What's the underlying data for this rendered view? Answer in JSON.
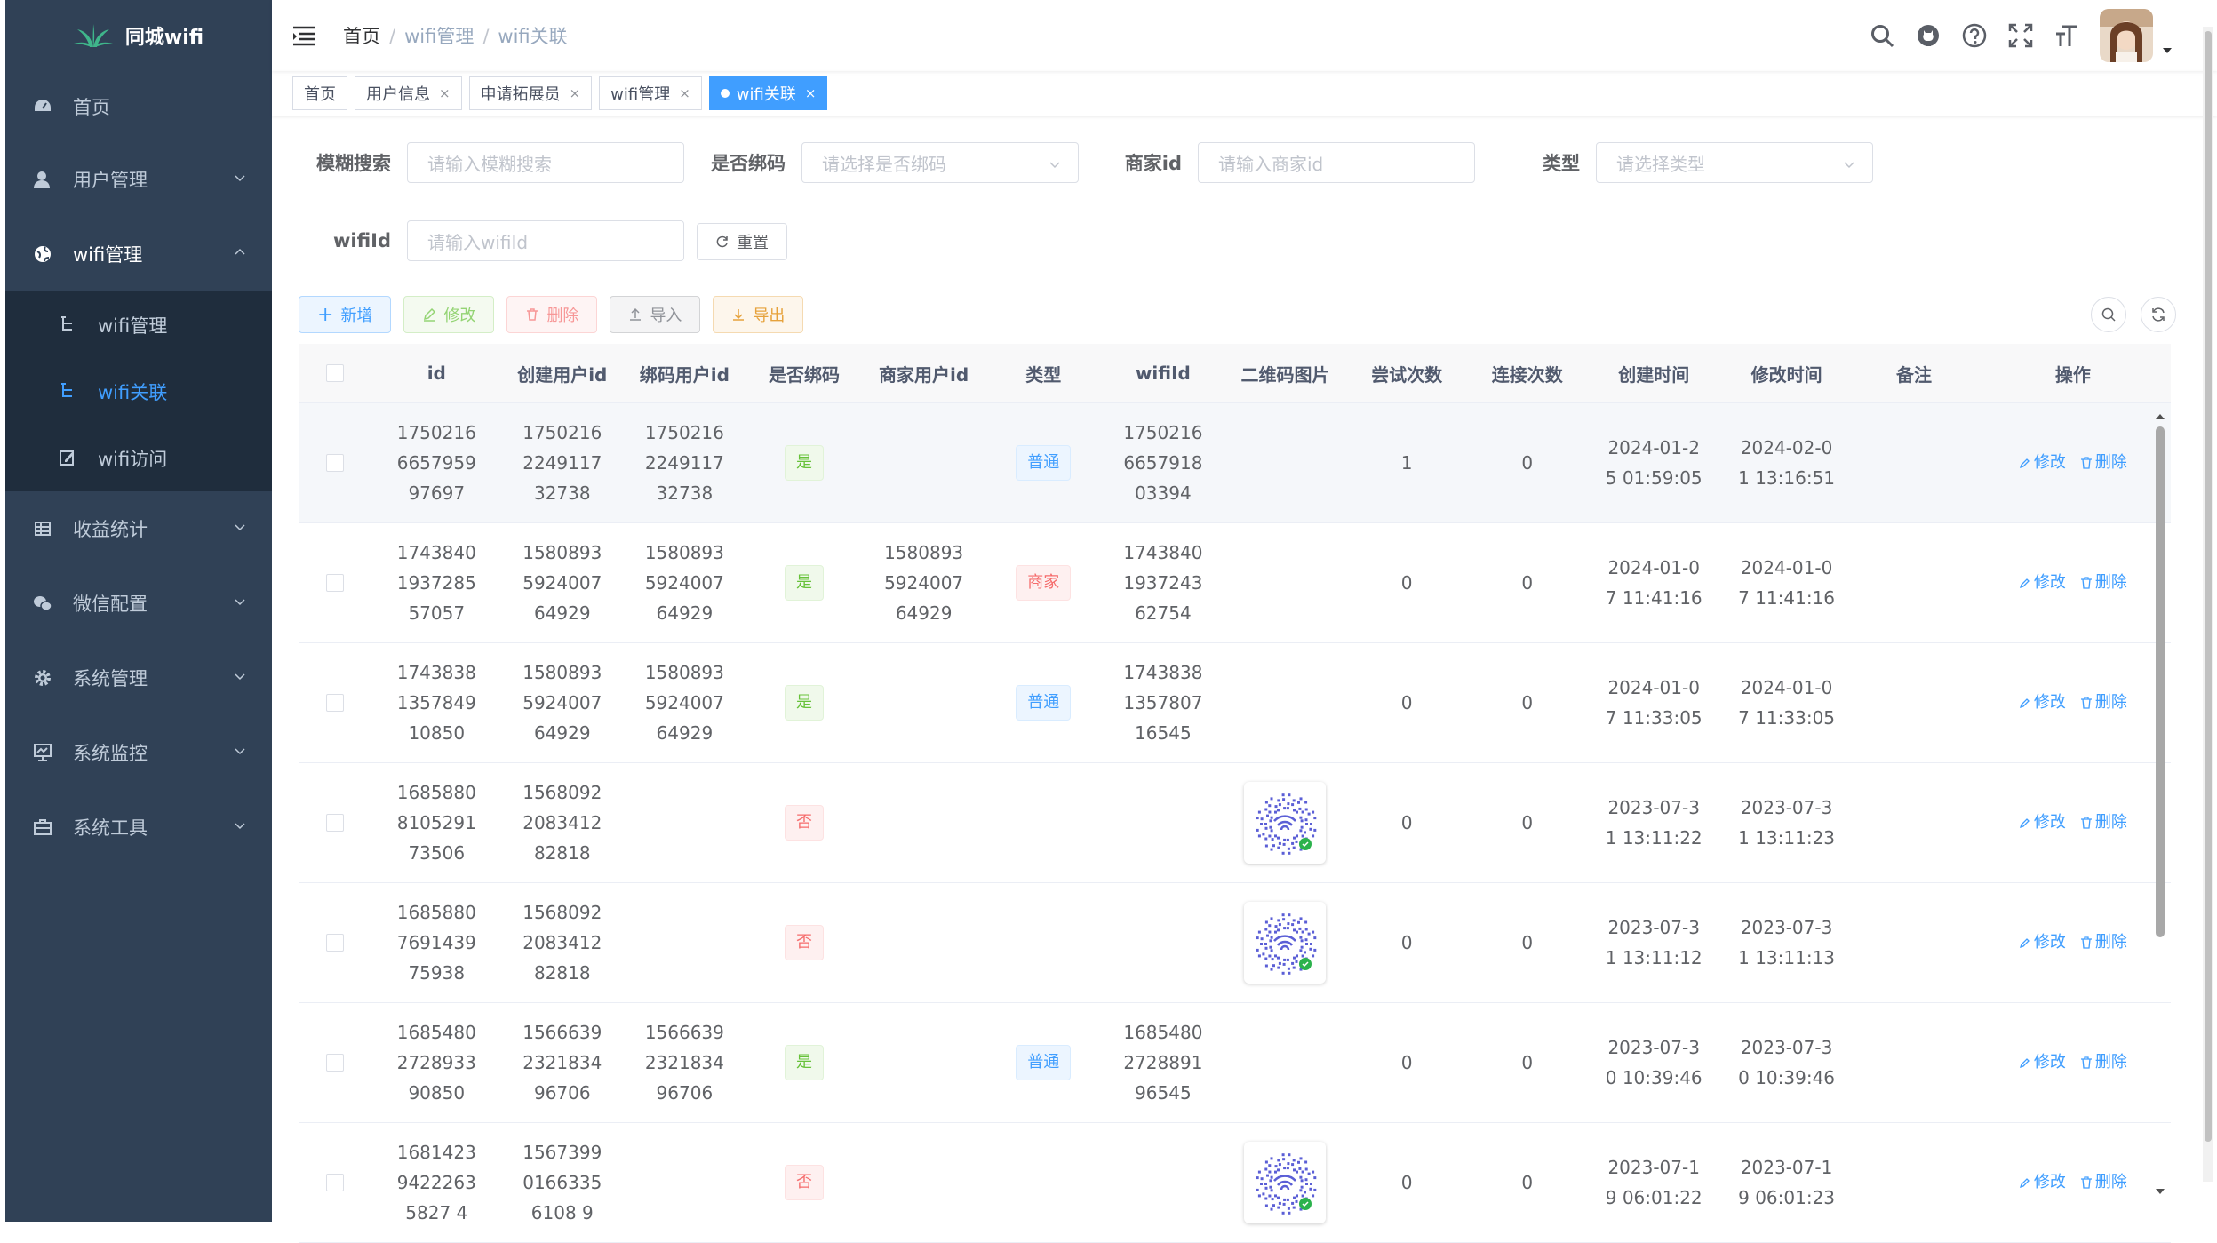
{
  "app": {
    "logo_text": "同城wifi",
    "brand_color": "#409eff",
    "sidebar_bg": "#304156"
  },
  "sidebar": {
    "items": [
      {
        "label": "首页",
        "icon": "dashboard-icon"
      },
      {
        "label": "用户管理",
        "icon": "user-icon"
      },
      {
        "label": "wifi管理",
        "icon": "globe-icon"
      },
      {
        "label": "收益统计",
        "icon": "table-icon"
      },
      {
        "label": "微信配置",
        "icon": "wechat-icon"
      },
      {
        "label": "系统管理",
        "icon": "gear-icon"
      },
      {
        "label": "系统监控",
        "icon": "monitor-icon"
      },
      {
        "label": "系统工具",
        "icon": "toolbox-icon"
      }
    ],
    "sub_items": [
      {
        "label": "wifi管理",
        "icon": "tree-icon"
      },
      {
        "label": "wifi关联",
        "icon": "tree-icon"
      },
      {
        "label": "wifi访问",
        "icon": "edit-icon"
      }
    ]
  },
  "breadcrumb": {
    "home": "首页",
    "parent": "wifi管理",
    "current": "wifi关联"
  },
  "tags": {
    "t0": "首页",
    "t1": "用户信息",
    "t2": "申请拓展员",
    "t3": "wifi管理",
    "t4": "wifi关联",
    "close": "×"
  },
  "search": {
    "keyword_label": "模糊搜索",
    "keyword_placeholder": "请输入模糊搜索",
    "bind_label": "是否绑码",
    "bind_placeholder": "请选择是否绑码",
    "merchant_label": "商家id",
    "merchant_placeholder": "请输入商家id",
    "type_label": "类型",
    "type_placeholder": "请选择类型",
    "wifi_label": "wifiId",
    "wifi_placeholder": "请输入wifiId",
    "reset": "重置"
  },
  "toolbar": {
    "add": "新增",
    "edit": "修改",
    "delete": "删除",
    "import": "导入",
    "export": "导出"
  },
  "table": {
    "headers": [
      "id",
      "创建用户id",
      "绑码用户id",
      "是否绑码",
      "商家用户id",
      "类型",
      "wifiId",
      "二维码图片",
      "尝试次数",
      "连接次数",
      "创建时间",
      "修改时间",
      "备注",
      "操作"
    ],
    "op_edit": "修改",
    "op_delete": "删除",
    "rows": [
      {
        "id": "1750216665795997697",
        "creator": "1750216224911732738",
        "binder": "1750216224911732738",
        "bound": "是",
        "merchant": "",
        "type": "普通",
        "wifi": "1750216665791803394",
        "qr": false,
        "tries": "1",
        "conns": "0",
        "created": "2024-01-25 01:59:05",
        "updated": "2024-02-01 13:16:51",
        "remark": ""
      },
      {
        "id": "1743840193728557057",
        "creator": "1580893592400764929",
        "binder": "1580893592400764929",
        "bound": "是",
        "merchant": "1580893592400764929",
        "type": "商家",
        "wifi": "1743840193724362754",
        "qr": false,
        "tries": "0",
        "conns": "0",
        "created": "2024-01-07 11:41:16",
        "updated": "2024-01-07 11:41:16",
        "remark": ""
      },
      {
        "id": "1743838135784910850",
        "creator": "1580893592400764929",
        "binder": "1580893592400764929",
        "bound": "是",
        "merchant": "",
        "type": "普通",
        "wifi": "1743838135780716545",
        "qr": false,
        "tries": "0",
        "conns": "0",
        "created": "2024-01-07 11:33:05",
        "updated": "2024-01-07 11:33:05",
        "remark": ""
      },
      {
        "id": "1685880810529173506",
        "creator": "1568092208341282818",
        "binder": "",
        "bound": "否",
        "merchant": "",
        "type": "",
        "wifi": "",
        "qr": true,
        "tries": "0",
        "conns": "0",
        "created": "2023-07-31 13:11:22",
        "updated": "2023-07-31 13:11:23",
        "remark": ""
      },
      {
        "id": "1685880769143975938",
        "creator": "1568092208341282818",
        "binder": "",
        "bound": "否",
        "merchant": "",
        "type": "",
        "wifi": "",
        "qr": true,
        "tries": "0",
        "conns": "0",
        "created": "2023-07-31 13:11:12",
        "updated": "2023-07-31 13:11:13",
        "remark": ""
      },
      {
        "id": "1685480272893390850",
        "creator": "1566639232183496706",
        "binder": "1566639232183496706",
        "bound": "是",
        "merchant": "",
        "type": "普通",
        "wifi": "1685480272889196545",
        "qr": false,
        "tries": "0",
        "conns": "0",
        "created": "2023-07-30 10:39:46",
        "updated": "2023-07-30 10:39:46",
        "remark": ""
      },
      {
        "id": "168142394222635827 4",
        "creator": "156739901663356108 9",
        "binder": "",
        "bound": "否",
        "merchant": "",
        "type": "",
        "wifi": "",
        "qr": true,
        "tries": "0",
        "conns": "0",
        "created": "2023-07-19 06:01:22",
        "updated": "2023-07-19 06:01:23",
        "remark": ""
      }
    ]
  }
}
